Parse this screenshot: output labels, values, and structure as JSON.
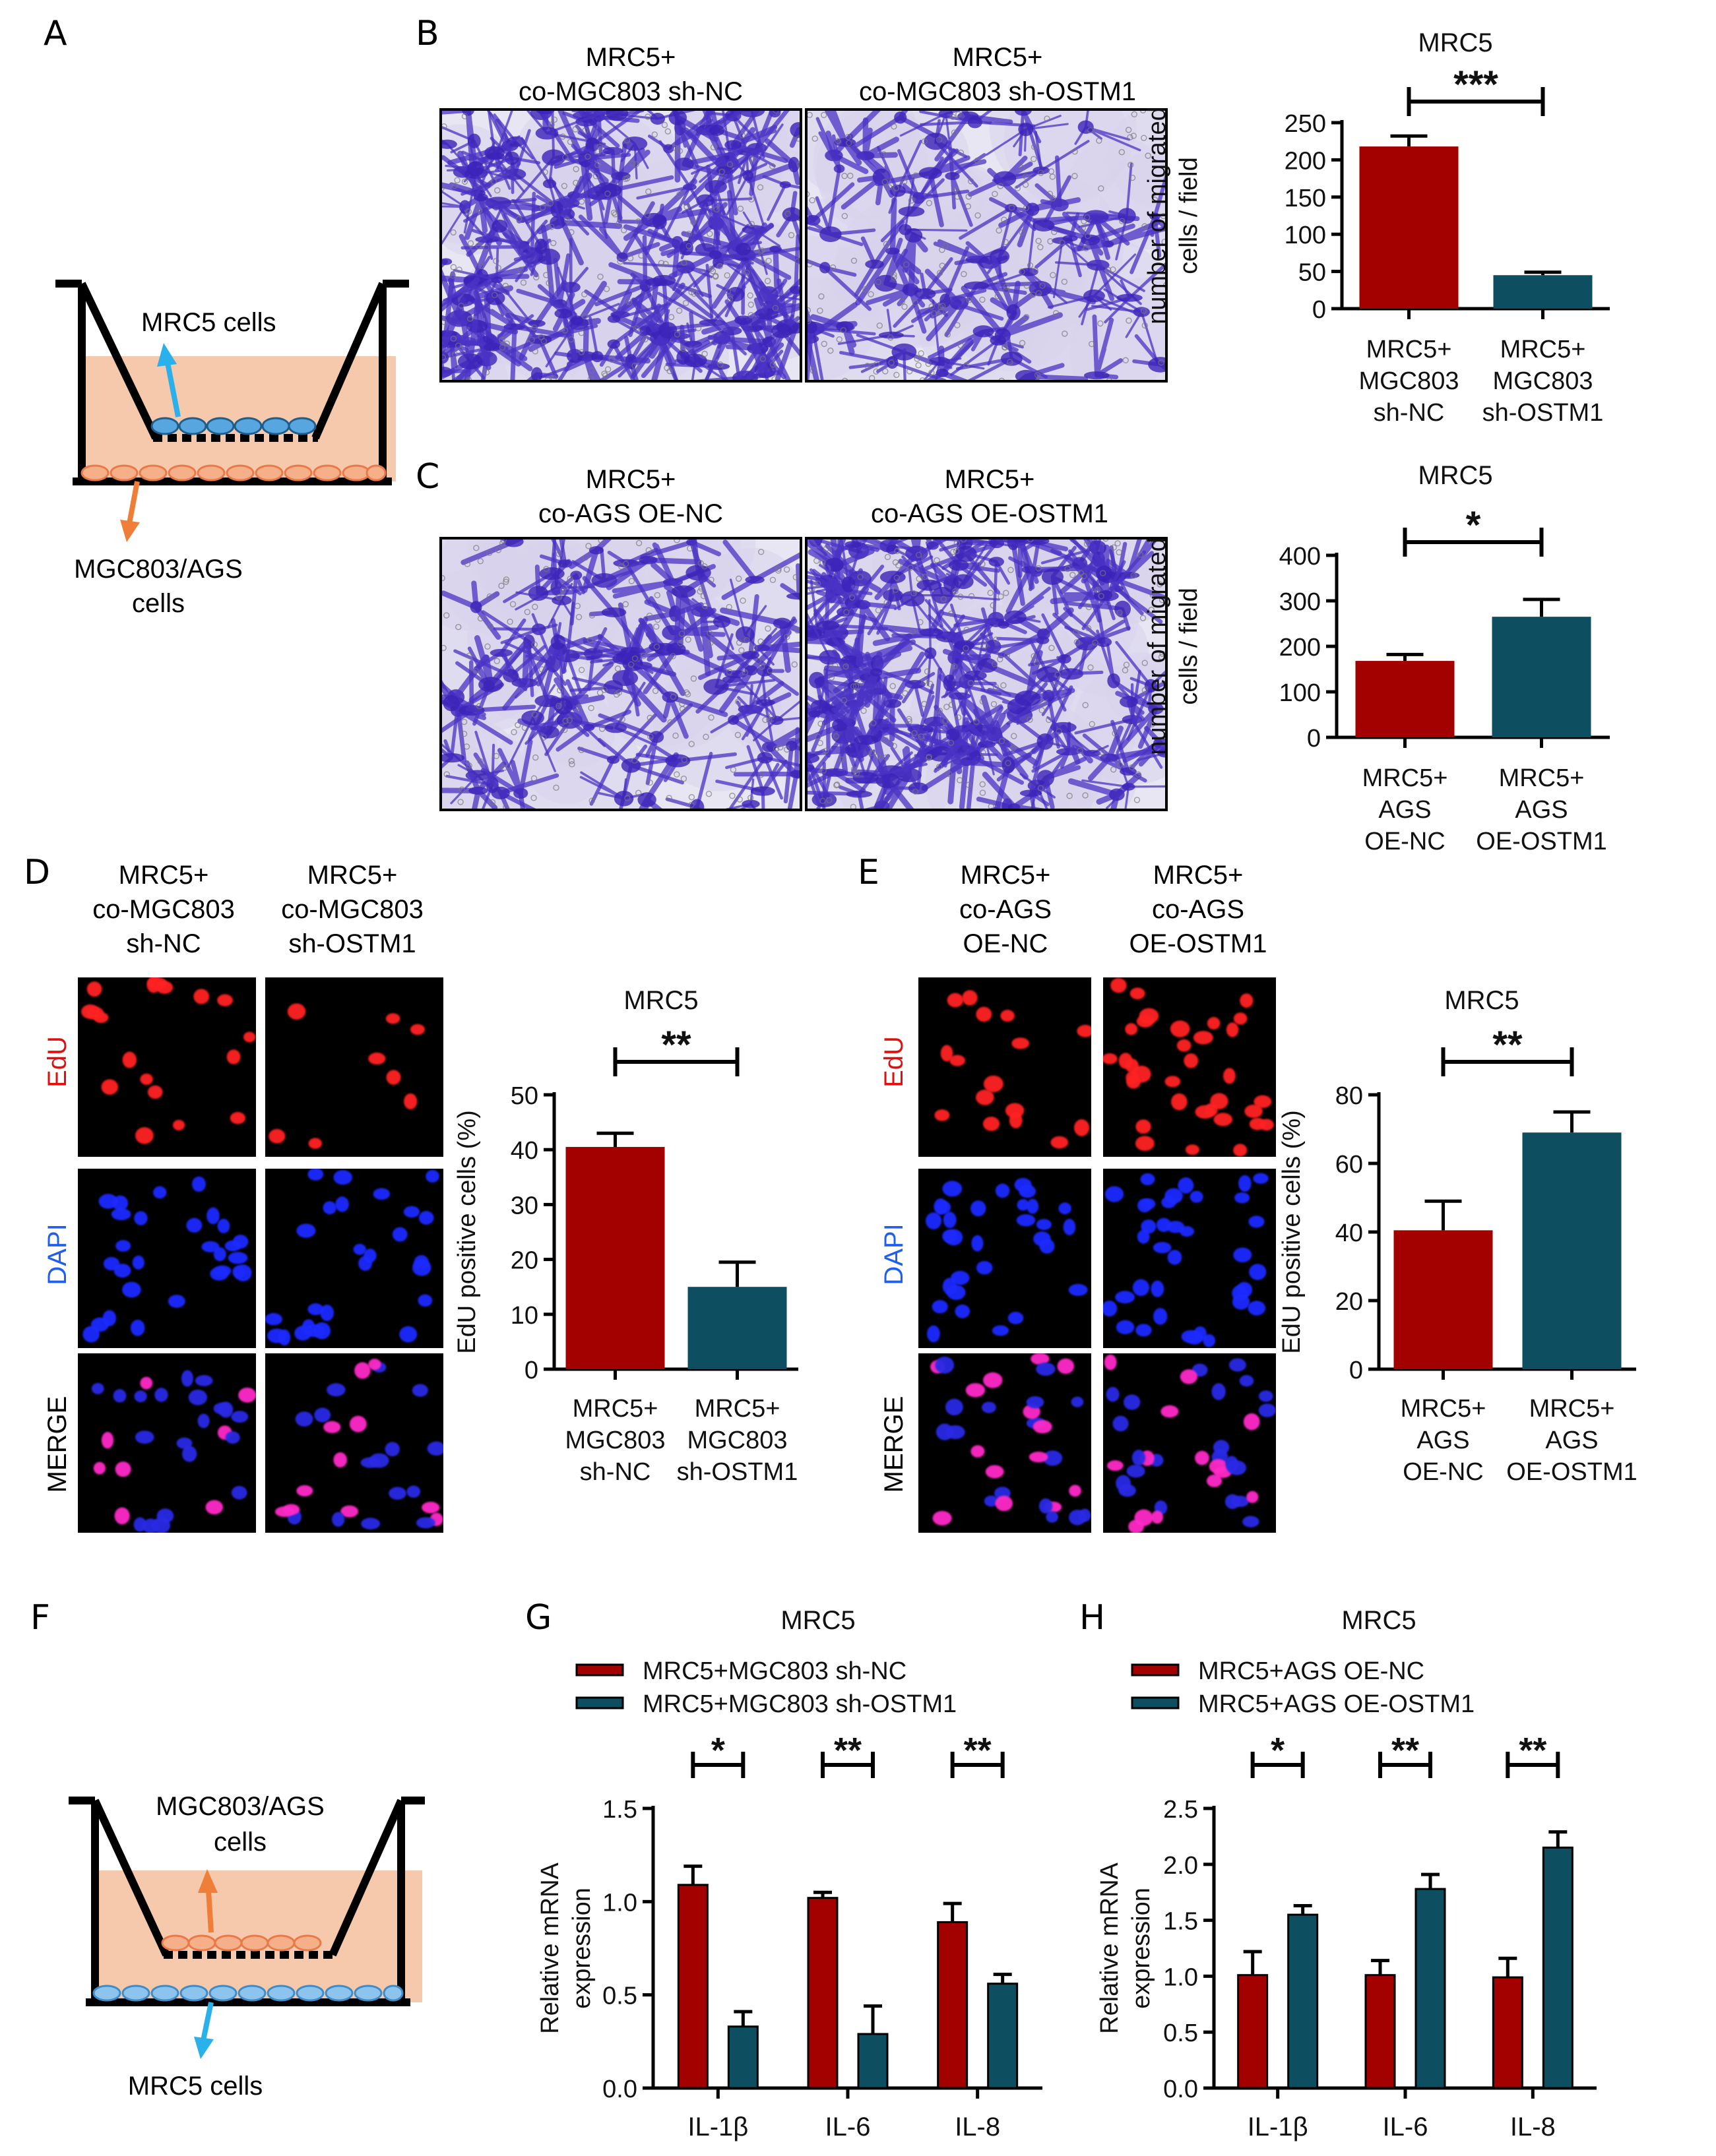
{
  "colors": {
    "red": "#a30000",
    "teal": "#0d4f60",
    "tissue": "#f6c9ad",
    "cell_blue": "#58a6e0",
    "cell_orange": "#f29a6b",
    "arrow_blue": "#2ab0ea",
    "arrow_orange": "#ef7e38",
    "crystal": "#5b47c8"
  },
  "panels": {
    "A": "A",
    "B": "B",
    "C": "C",
    "D": "D",
    "E": "E",
    "F": "F",
    "G": "G",
    "H": "H"
  },
  "schematic_a": {
    "top_label": "MRC5 cells",
    "bottom_label_1": "MGC803/AGS",
    "bottom_label_2": "cells"
  },
  "schematic_f": {
    "top_label_1": "MGC803/AGS",
    "top_label_2": "cells",
    "bottom_label": "MRC5 cells"
  },
  "micro_b": {
    "left_1": "MRC5+",
    "left_2": "co-MGC803 sh-NC",
    "right_1": "MRC5+",
    "right_2": "co-MGC803 sh-OSTM1"
  },
  "micro_c": {
    "left_1": "MRC5+",
    "left_2": "co-AGS OE-NC",
    "right_1": "MRC5+",
    "right_2": "co-AGS OE-OSTM1"
  },
  "micro_d": {
    "col1": [
      "MRC5+",
      "co-MGC803",
      "sh-NC"
    ],
    "col2": [
      "MRC5+",
      "co-MGC803",
      "sh-OSTM1"
    ],
    "rows": [
      "EdU",
      "DAPI",
      "MERGE"
    ]
  },
  "micro_e": {
    "col1": [
      "MRC5+",
      "co-AGS",
      "OE-NC"
    ],
    "col2": [
      "MRC5+",
      "co-AGS",
      "OE-OSTM1"
    ],
    "rows": [
      "EdU",
      "DAPI",
      "MERGE"
    ]
  },
  "chart_data": [
    {
      "panel": "B",
      "type": "bar",
      "title": "MRC5",
      "ylabel_lines": [
        "number of migrated",
        "cells / field"
      ],
      "categories": [
        [
          "MRC5+",
          "MGC803",
          "sh-NC"
        ],
        [
          "MRC5+",
          "MGC803",
          "sh-OSTM1"
        ]
      ],
      "values": [
        218,
        45
      ],
      "errors": [
        14,
        4
      ],
      "colors": [
        "#a30000",
        "#0d4f60"
      ],
      "ylim": [
        0,
        250
      ],
      "yticks": [
        0,
        50,
        100,
        150,
        200,
        250
      ],
      "significance": "***"
    },
    {
      "panel": "C",
      "type": "bar",
      "title": "MRC5",
      "ylabel_lines": [
        "number of migrated",
        "cells / field"
      ],
      "categories": [
        [
          "MRC5+",
          "AGS",
          "OE-NC"
        ],
        [
          "MRC5+",
          "AGS",
          "OE-OSTM1"
        ]
      ],
      "values": [
        168,
        265
      ],
      "errors": [
        14,
        38
      ],
      "colors": [
        "#a30000",
        "#0d4f60"
      ],
      "ylim": [
        0,
        400
      ],
      "yticks": [
        0,
        100,
        200,
        300,
        400
      ],
      "significance": "*"
    },
    {
      "panel": "D",
      "type": "bar",
      "title": "MRC5",
      "ylabel_lines": [
        "EdU positive cells (%)"
      ],
      "categories": [
        [
          "MRC5+",
          "MGC803",
          "sh-NC"
        ],
        [
          "MRC5+",
          "MGC803",
          "sh-OSTM1"
        ]
      ],
      "values": [
        40.5,
        15
      ],
      "errors": [
        2.5,
        4.5
      ],
      "colors": [
        "#a30000",
        "#0d4f60"
      ],
      "ylim": [
        0,
        50
      ],
      "yticks": [
        0,
        10,
        20,
        30,
        40,
        50
      ],
      "significance": "**"
    },
    {
      "panel": "E",
      "type": "bar",
      "title": "MRC5",
      "ylabel_lines": [
        "EdU positive cells (%)"
      ],
      "categories": [
        [
          "MRC5+",
          "AGS",
          "OE-NC"
        ],
        [
          "MRC5+",
          "AGS",
          "OE-OSTM1"
        ]
      ],
      "values": [
        40.5,
        69
      ],
      "errors": [
        8.5,
        6
      ],
      "colors": [
        "#a30000",
        "#0d4f60"
      ],
      "ylim": [
        0,
        80
      ],
      "yticks": [
        0,
        20,
        40,
        60,
        80
      ],
      "significance": "**"
    },
    {
      "panel": "G",
      "type": "bar",
      "title": "MRC5",
      "ylabel_lines": [
        "Relative mRNA",
        "expression"
      ],
      "categories": [
        "IL-1β",
        "IL-6",
        "IL-8"
      ],
      "series": [
        {
          "name": "MRC5+MGC803 sh-NC",
          "color": "#a30000",
          "values": [
            1.09,
            1.02,
            0.89
          ],
          "errors": [
            0.1,
            0.03,
            0.1
          ]
        },
        {
          "name": "MRC5+MGC803 sh-OSTM1",
          "color": "#0d4f60",
          "values": [
            0.33,
            0.29,
            0.56
          ],
          "errors": [
            0.08,
            0.15,
            0.05
          ]
        }
      ],
      "ylim": [
        0,
        1.5
      ],
      "yticks": [
        "0.0",
        "0.5",
        "1.0",
        "1.5"
      ],
      "significance": [
        "*",
        "**",
        "**"
      ]
    },
    {
      "panel": "H",
      "type": "bar",
      "title": "MRC5",
      "ylabel_lines": [
        "Relative mRNA",
        "expression"
      ],
      "categories": [
        "IL-1β",
        "IL-6",
        "IL-8"
      ],
      "series": [
        {
          "name": "MRC5+AGS OE-NC",
          "color": "#a30000",
          "values": [
            1.01,
            1.01,
            0.99
          ],
          "errors": [
            0.21,
            0.13,
            0.17
          ]
        },
        {
          "name": "MRC5+AGS OE-OSTM1",
          "color": "#0d4f60",
          "values": [
            1.55,
            1.78,
            2.15
          ],
          "errors": [
            0.08,
            0.13,
            0.14
          ]
        }
      ],
      "ylim": [
        0,
        2.5
      ],
      "yticks": [
        "0.0",
        "0.5",
        "1.0",
        "1.5",
        "2.0",
        "2.5"
      ],
      "significance": [
        "*",
        "**",
        "**"
      ]
    }
  ]
}
